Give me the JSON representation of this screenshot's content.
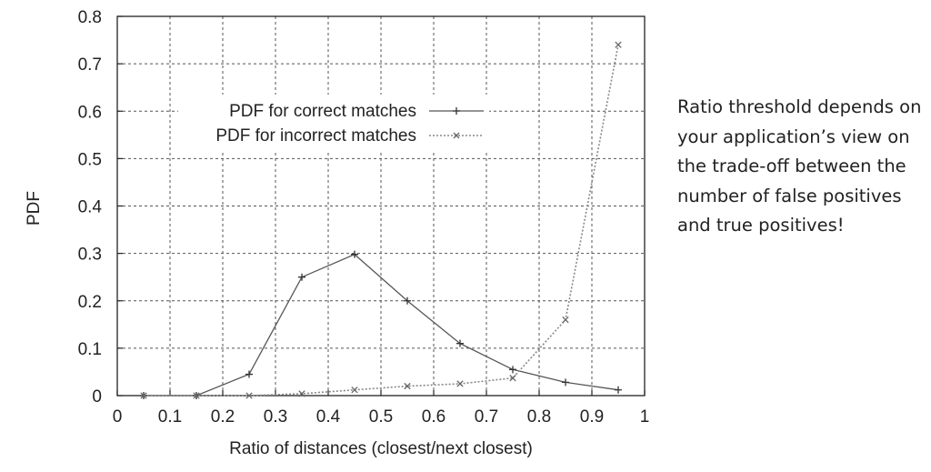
{
  "chart_data": {
    "type": "line",
    "xlabel": "Ratio of distances (closest/next closest)",
    "ylabel": "PDF",
    "xlim": [
      0,
      1
    ],
    "ylim": [
      0,
      0.8
    ],
    "xticks": [
      "0",
      "0.1",
      "0.2",
      "0.3",
      "0.4",
      "0.5",
      "0.6",
      "0.7",
      "0.8",
      "0.9",
      "1"
    ],
    "yticks": [
      "0",
      "0.1",
      "0.2",
      "0.3",
      "0.4",
      "0.5",
      "0.6",
      "0.7",
      "0.8"
    ],
    "grid": true,
    "legend_position": "upper-left",
    "series": [
      {
        "name": "PDF for correct matches",
        "marker": "plus",
        "line_style": "solid",
        "color": "#555555",
        "x": [
          0.05,
          0.15,
          0.25,
          0.35,
          0.45,
          0.55,
          0.65,
          0.75,
          0.85,
          0.95
        ],
        "y": [
          0.0,
          0.0,
          0.045,
          0.25,
          0.298,
          0.2,
          0.11,
          0.055,
          0.028,
          0.012
        ]
      },
      {
        "name": "PDF for incorrect matches",
        "marker": "cross",
        "line_style": "dotted",
        "color": "#888888",
        "x": [
          0.05,
          0.15,
          0.25,
          0.35,
          0.45,
          0.55,
          0.65,
          0.75,
          0.85,
          0.95
        ],
        "y": [
          0.0,
          0.0,
          0.0,
          0.004,
          0.012,
          0.02,
          0.025,
          0.037,
          0.16,
          0.74
        ]
      }
    ]
  },
  "side_note": "Ratio threshold depends on your application’s view on the trade-off between the number of false positives and true positives!"
}
